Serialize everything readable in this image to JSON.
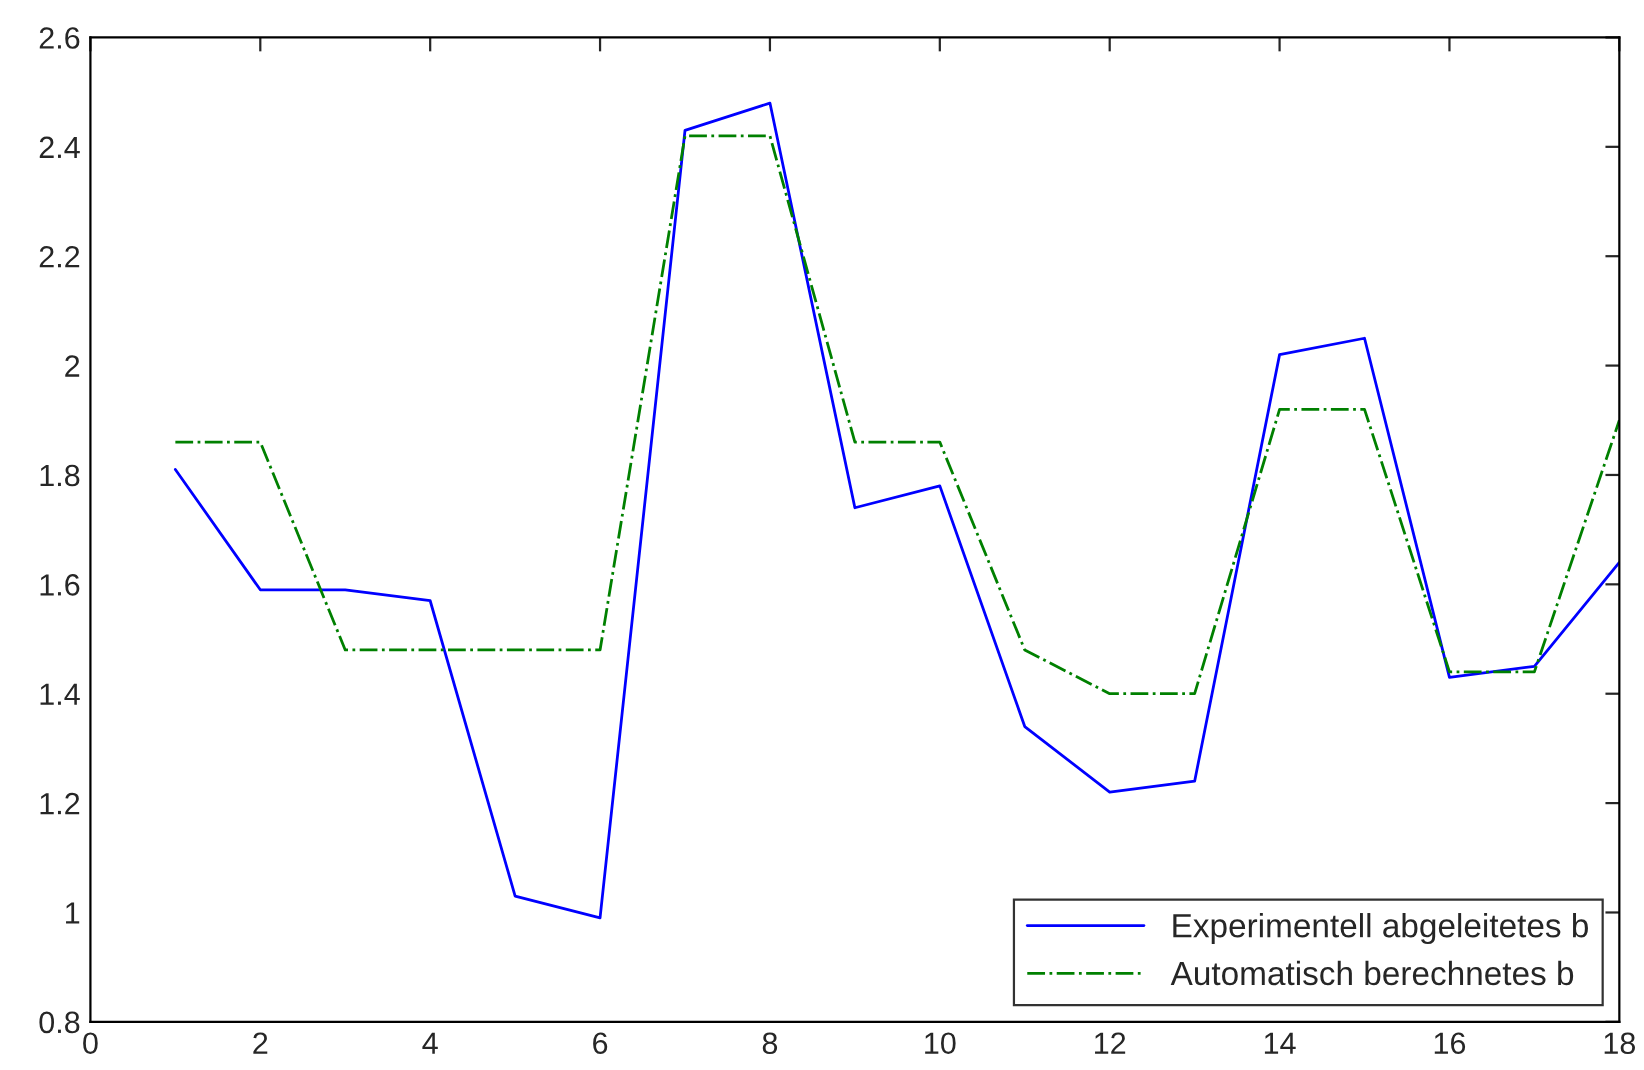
{
  "chart_data": {
    "type": "line",
    "x": [
      1,
      2,
      3,
      4,
      5,
      6,
      7,
      8,
      9,
      10,
      11,
      12,
      13,
      14,
      15,
      16,
      17,
      18
    ],
    "series": [
      {
        "name": "Experimentell abgeleitetes b",
        "color": "#0000ff",
        "line_style": "solid",
        "values": [
          1.81,
          1.59,
          1.59,
          1.57,
          1.03,
          0.99,
          2.43,
          2.48,
          1.74,
          1.78,
          1.34,
          1.22,
          1.24,
          2.02,
          2.05,
          1.43,
          1.45,
          1.64
        ]
      },
      {
        "name": "Automatisch berechnetes b",
        "color": "#008000",
        "line_style": "dashdot",
        "values": [
          1.86,
          1.86,
          1.48,
          1.48,
          1.48,
          1.48,
          2.42,
          2.42,
          1.86,
          1.86,
          1.48,
          1.4,
          1.4,
          1.92,
          1.92,
          1.44,
          1.44,
          1.9
        ]
      }
    ],
    "xlim": [
      0,
      18
    ],
    "xticks": [
      0,
      2,
      4,
      6,
      8,
      10,
      12,
      14,
      16,
      18
    ],
    "ylim": [
      0.8,
      2.6
    ],
    "yticks": [
      0.8,
      1,
      1.2,
      1.4,
      1.6,
      1.8,
      2,
      2.2,
      2.4,
      2.6
    ],
    "grid": false,
    "legend": "bottom right",
    "marker": "none"
  }
}
